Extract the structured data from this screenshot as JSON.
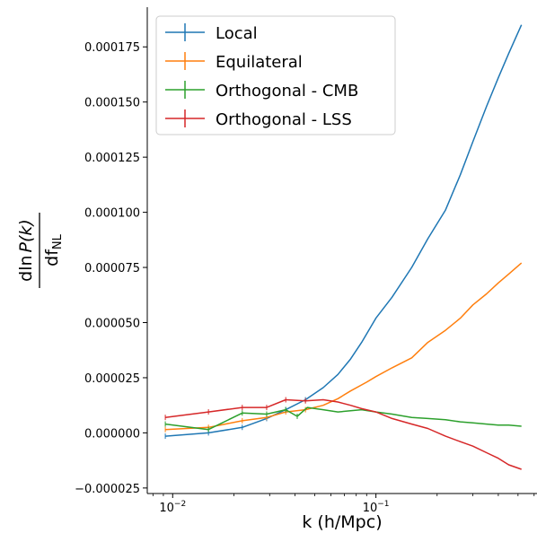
{
  "chart_data": {
    "type": "line",
    "xlabel": "k (h/Mpc)",
    "ylabel_main": "dln",
    "ylabel_func": "P(k)",
    "ylabel_den": "df",
    "ylabel_den_sub": "NL",
    "xscale": "log",
    "xlim": [
      0.0075,
      0.62
    ],
    "ylim": [
      -2.75e-05,
      0.000193
    ],
    "x_ticks": [
      {
        "value": 0.01,
        "base": "10",
        "exp": "−2"
      },
      {
        "value": 0.1,
        "base": "10",
        "exp": "−1"
      }
    ],
    "y_ticks": [
      {
        "value": -2.5e-05,
        "label": "−0.000025"
      },
      {
        "value": 0.0,
        "label": "0.000000"
      },
      {
        "value": 2.5e-05,
        "label": "0.000025"
      },
      {
        "value": 5e-05,
        "label": "0.000050"
      },
      {
        "value": 7.5e-05,
        "label": "0.000075"
      },
      {
        "value": 0.0001,
        "label": "0.000100"
      },
      {
        "value": 0.000125,
        "label": "0.000125"
      },
      {
        "value": 0.00015,
        "label": "0.000150"
      },
      {
        "value": 0.000175,
        "label": "0.000175"
      }
    ],
    "legend_position": "top-left",
    "series": [
      {
        "name": "Local",
        "color": "#1f77b4",
        "x": [
          0.0092,
          0.015,
          0.022,
          0.029,
          0.036,
          0.045,
          0.055,
          0.065,
          0.075,
          0.085,
          0.1,
          0.12,
          0.15,
          0.18,
          0.22,
          0.26,
          0.3,
          0.35,
          0.4,
          0.45,
          0.52
        ],
        "y": [
          -1.5e-06,
          0.0,
          2.5e-06,
          6.5e-06,
          1.05e-05,
          1.5e-05,
          2.05e-05,
          2.65e-05,
          3.35e-05,
          4.1e-05,
          5.2e-05,
          6.15e-05,
          7.5e-05,
          8.8e-05,
          0.000101,
          0.000117,
          0.000132,
          0.000148,
          0.000161,
          0.000172,
          0.000185
        ]
      },
      {
        "name": "Equilateral",
        "color": "#ff7f0e",
        "x": [
          0.0092,
          0.015,
          0.022,
          0.029,
          0.036,
          0.045,
          0.055,
          0.065,
          0.075,
          0.09,
          0.1,
          0.12,
          0.15,
          0.18,
          0.22,
          0.26,
          0.3,
          0.35,
          0.4,
          0.45,
          0.52
        ],
        "y": [
          1.5e-06,
          2.5e-06,
          5.5e-06,
          7e-06,
          9.5e-06,
          1.05e-05,
          1.25e-05,
          1.55e-05,
          1.9e-05,
          2.3e-05,
          2.55e-05,
          2.95e-05,
          3.4e-05,
          4.1e-05,
          4.65e-05,
          5.2e-05,
          5.8e-05,
          6.3e-05,
          6.8e-05,
          7.2e-05,
          7.7e-05
        ]
      },
      {
        "name": "Orthogonal - CMB",
        "color": "#2ca02c",
        "x": [
          0.0092,
          0.015,
          0.022,
          0.029,
          0.036,
          0.041,
          0.046,
          0.055,
          0.065,
          0.075,
          0.085,
          0.1,
          0.12,
          0.15,
          0.18,
          0.22,
          0.26,
          0.3,
          0.35,
          0.4,
          0.45,
          0.52
        ],
        "y": [
          4e-06,
          1.5e-06,
          9e-06,
          8.5e-06,
          1.05e-05,
          7.5e-06,
          1.15e-05,
          1.05e-05,
          9.5e-06,
          1e-05,
          1.05e-05,
          9.5e-06,
          8.5e-06,
          7e-06,
          6.5e-06,
          6e-06,
          5e-06,
          4.5e-06,
          4e-06,
          3.5e-06,
          3.5e-06,
          3e-06
        ]
      },
      {
        "name": "Orthogonal - LSS",
        "color": "#d62728",
        "x": [
          0.0092,
          0.015,
          0.022,
          0.029,
          0.036,
          0.045,
          0.055,
          0.065,
          0.075,
          0.085,
          0.1,
          0.12,
          0.15,
          0.18,
          0.22,
          0.26,
          0.3,
          0.35,
          0.4,
          0.45,
          0.52
        ],
        "y": [
          7e-06,
          9.5e-06,
          1.15e-05,
          1.15e-05,
          1.5e-05,
          1.45e-05,
          1.5e-05,
          1.4e-05,
          1.25e-05,
          1.1e-05,
          9.5e-06,
          6.5e-06,
          4e-06,
          2e-06,
          -1.5e-06,
          -4e-06,
          -6e-06,
          -9e-06,
          -1.15e-05,
          -1.45e-05,
          -1.65e-05
        ]
      }
    ]
  }
}
